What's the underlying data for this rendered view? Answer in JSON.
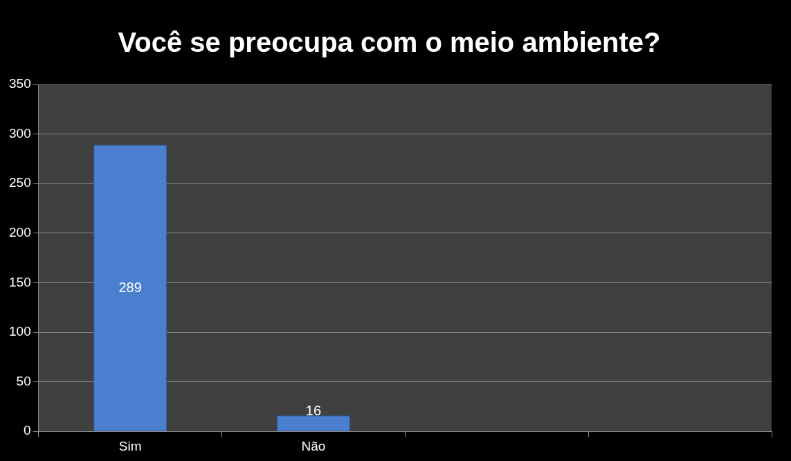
{
  "chart_data": {
    "type": "bar",
    "title": "Você se preocupa com o meio ambiente?",
    "categories": [
      "Sim",
      "Não",
      null,
      null
    ],
    "values": [
      289,
      16,
      null,
      null
    ],
    "color": "#4a7fd0",
    "ylim": [
      0,
      350
    ],
    "yticks": [
      0,
      50,
      100,
      150,
      200,
      250,
      300,
      350
    ],
    "grid": "y",
    "data_labels": true
  }
}
